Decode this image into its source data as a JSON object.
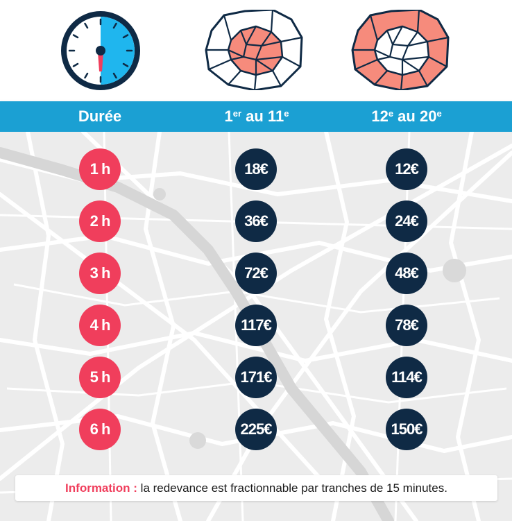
{
  "colors": {
    "header": "#1ba0d3",
    "duration_badge": "#f03e5c",
    "price_badge": "#0f2a45",
    "zone_fill": "#f68b7c",
    "map_bg": "#ececec"
  },
  "icons": {
    "clock": "clock-icon",
    "inner_map": "paris-inner-arrondissements-icon",
    "outer_map": "paris-outer-arrondissements-icon"
  },
  "header": {
    "duration": "Durée",
    "zone1": {
      "from": "1",
      "from_sup": "er",
      "mid": " au ",
      "to": "11",
      "to_sup": "e"
    },
    "zone2": {
      "from": "12",
      "from_sup": "e",
      "mid": " au ",
      "to": "20",
      "to_sup": "e"
    }
  },
  "rows": [
    {
      "duration": "1 h",
      "zone1": "18€",
      "zone2": "12€"
    },
    {
      "duration": "2 h",
      "zone1": "36€",
      "zone2": "24€"
    },
    {
      "duration": "3 h",
      "zone1": "72€",
      "zone2": "48€"
    },
    {
      "duration": "4 h",
      "zone1": "117€",
      "zone2": "78€"
    },
    {
      "duration": "5 h",
      "zone1": "171€",
      "zone2": "114€"
    },
    {
      "duration": "6 h",
      "zone1": "225€",
      "zone2": "150€"
    }
  ],
  "info": {
    "label": "Information :",
    "text": " la redevance est fractionnable par tranches de 15 minutes."
  }
}
